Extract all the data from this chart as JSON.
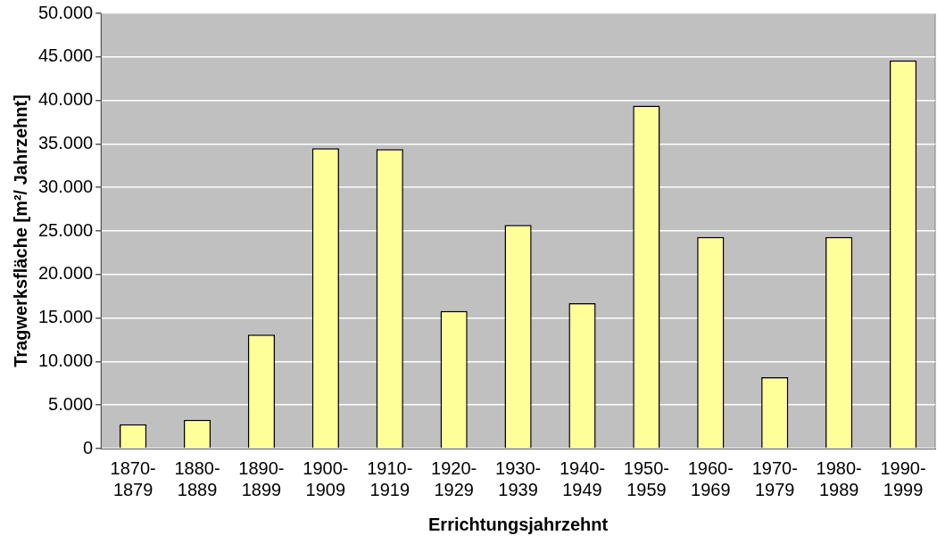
{
  "chart_data": {
    "type": "bar",
    "xlabel": "Errichtungsjahrzehnt",
    "ylabel": "Tragwerksfläche [m²/ Jahrzehnt]",
    "categories": [
      "1870-1879",
      "1880-1889",
      "1890-1899",
      "1900-1909",
      "1910-1919",
      "1920-1929",
      "1930-1939",
      "1940-1949",
      "1950-1959",
      "1960-1969",
      "1970-1979",
      "1980-1989",
      "1990-1999"
    ],
    "values": [
      2800,
      3300,
      13100,
      34500,
      34400,
      15800,
      25700,
      16700,
      39400,
      24300,
      8200,
      24300,
      44600
    ],
    "color": "#ffff99",
    "ylim": [
      0,
      50000
    ],
    "yticks": [
      0,
      {
        "value": 5000,
        "label": "5.000"
      },
      {
        "value": 10000,
        "label": "10.000"
      },
      {
        "value": 15000,
        "label": "15.000"
      },
      {
        "value": 20000,
        "label": "20.000"
      },
      {
        "value": 25000,
        "label": "25.000"
      },
      {
        "value": 30000,
        "label": "30.000"
      },
      {
        "value": 35000,
        "label": "35.000"
      },
      {
        "value": 40000,
        "label": "40.000"
      },
      {
        "value": 45000,
        "label": "45.000"
      },
      {
        "value": 50000,
        "label": "50.000"
      }
    ],
    "grid": "y"
  }
}
